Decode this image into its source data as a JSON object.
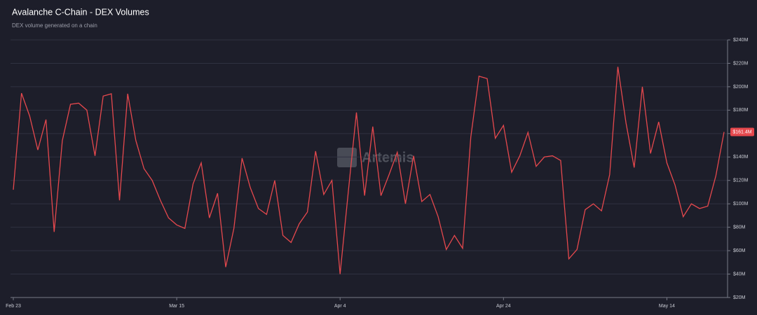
{
  "chart_data": {
    "type": "line",
    "title": "Avalanche C-Chain - DEX Volumes",
    "subtitle": "DEX volume generated on a chain",
    "watermark": "Artemis",
    "categories": [
      "Feb 23",
      "Feb 24",
      "Feb 25",
      "Feb 26",
      "Feb 27",
      "Feb 28",
      "Mar 1",
      "Mar 2",
      "Mar 3",
      "Mar 4",
      "Mar 5",
      "Mar 6",
      "Mar 7",
      "Mar 8",
      "Mar 9",
      "Mar 10",
      "Mar 11",
      "Mar 12",
      "Mar 13",
      "Mar 14",
      "Mar 15",
      "Mar 16",
      "Mar 17",
      "Mar 18",
      "Mar 19",
      "Mar 20",
      "Mar 21",
      "Mar 22",
      "Mar 23",
      "Mar 24",
      "Mar 25",
      "Mar 26",
      "Mar 27",
      "Mar 28",
      "Mar 29",
      "Mar 30",
      "Mar 31",
      "Apr 1",
      "Apr 2",
      "Apr 3",
      "Apr 4",
      "Apr 5",
      "Apr 6",
      "Apr 7",
      "Apr 8",
      "Apr 9",
      "Apr 10",
      "Apr 11",
      "Apr 12",
      "Apr 13",
      "Apr 14",
      "Apr 15",
      "Apr 16",
      "Apr 17",
      "Apr 18",
      "Apr 19",
      "Apr 20",
      "Apr 21",
      "Apr 22",
      "Apr 23",
      "Apr 24",
      "Apr 25",
      "Apr 26",
      "Apr 27",
      "Apr 28",
      "Apr 29",
      "Apr 30",
      "May 1",
      "May 2",
      "May 3",
      "May 4",
      "May 5",
      "May 6",
      "May 7",
      "May 8",
      "May 9",
      "May 10",
      "May 11",
      "May 12",
      "May 13",
      "May 14",
      "May 15",
      "May 16",
      "May 17",
      "May 18",
      "May 19",
      "May 20",
      "May 21"
    ],
    "series": [
      {
        "name": "DEX Volume",
        "color": "#e5484d",
        "values": [
          112,
          194.5,
          175,
          146,
          172,
          76,
          154,
          185,
          186,
          180,
          141,
          192,
          194,
          103,
          194,
          154,
          130,
          120,
          103,
          88,
          82,
          79,
          117,
          135,
          88,
          109,
          46,
          79,
          139,
          114,
          96,
          91,
          120,
          73,
          67,
          83,
          93,
          145,
          108,
          120,
          40,
          110,
          178,
          107,
          166,
          107,
          125,
          144,
          100,
          141,
          102,
          108,
          89,
          61,
          73,
          62,
          157,
          209,
          207,
          156,
          167,
          127,
          141,
          161,
          132,
          140,
          141,
          137,
          53,
          61,
          95,
          100,
          94,
          125,
          217,
          169,
          131,
          200,
          143,
          170,
          135,
          116,
          89,
          100,
          96,
          98,
          124,
          161.4
        ],
        "last_value_label": "$161.4M"
      }
    ],
    "xticks": [
      "Feb 23",
      "Mar 15",
      "Apr 4",
      "Apr 24",
      "May 14"
    ],
    "ylim": [
      20,
      240
    ],
    "yticks": [
      {
        "value": 20,
        "label": "$20M"
      },
      {
        "value": 40,
        "label": "$40M"
      },
      {
        "value": 60,
        "label": "$60M"
      },
      {
        "value": 80,
        "label": "$80M"
      },
      {
        "value": 100,
        "label": "$100M"
      },
      {
        "value": 120,
        "label": "$120M"
      },
      {
        "value": 140,
        "label": "$140M"
      },
      {
        "value": 160,
        "label": "$160M"
      },
      {
        "value": 180,
        "label": "$180M"
      },
      {
        "value": 200,
        "label": "$200M"
      },
      {
        "value": 220,
        "label": "$220M"
      },
      {
        "value": 240,
        "label": "$240M"
      }
    ],
    "grid": true
  }
}
